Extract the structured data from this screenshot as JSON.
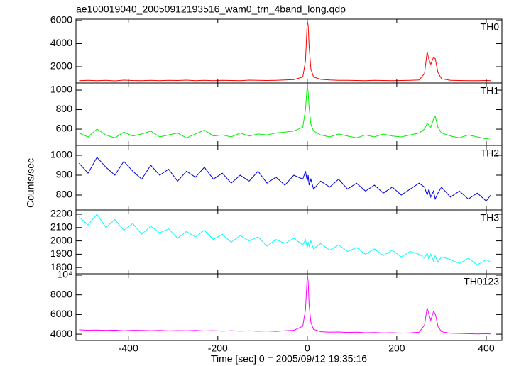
{
  "title": "ae100019040_20050912193516_wam0_trn_4band_long.qdp",
  "x_label": "Time [sec] 0 = 2005/09/12 19:35:16",
  "y_label": "Counts/sec",
  "chart_data": [
    {
      "type": "line",
      "x": [
        -510,
        -490,
        -470,
        -450,
        -430,
        -410,
        -390,
        -370,
        -350,
        -330,
        -310,
        -290,
        -270,
        -250,
        -230,
        -210,
        -190,
        -170,
        -150,
        -130,
        -110,
        -90,
        -70,
        -50,
        -30,
        -10,
        -4,
        0,
        2,
        4,
        8,
        14,
        30,
        50,
        70,
        90,
        110,
        130,
        150,
        170,
        190,
        210,
        230,
        250,
        262,
        268,
        272,
        276,
        282,
        286,
        292,
        300,
        320,
        340,
        360,
        380,
        400,
        410
      ],
      "series": [
        {
          "name": "TH0",
          "color": "#ff0000",
          "values": [
            780,
            820,
            790,
            810,
            770,
            830,
            800,
            790,
            820,
            780,
            810,
            800,
            830,
            790,
            810,
            780,
            820,
            800,
            790,
            830,
            810,
            800,
            820,
            850,
            880,
            1100,
            2500,
            5900,
            5600,
            3800,
            1800,
            1100,
            900,
            850,
            820,
            810,
            800,
            790,
            810,
            800,
            780,
            800,
            820,
            850,
            1400,
            3300,
            2600,
            2200,
            2800,
            2700,
            1500,
            950,
            820,
            800,
            790,
            780,
            800,
            790
          ]
        }
      ],
      "xlim": [
        -517,
        435
      ],
      "xticks": [
        -400,
        -200,
        0,
        200,
        400
      ],
      "ylim": [
        585,
        6120
      ],
      "yticks": [
        2000,
        4000,
        6000
      ]
    },
    {
      "type": "line",
      "x": [
        -510,
        -490,
        -470,
        -450,
        -430,
        -410,
        -390,
        -370,
        -350,
        -330,
        -310,
        -290,
        -270,
        -250,
        -230,
        -210,
        -190,
        -170,
        -150,
        -130,
        -110,
        -90,
        -70,
        -50,
        -30,
        -10,
        -4,
        0,
        2,
        4,
        8,
        14,
        30,
        50,
        70,
        90,
        110,
        130,
        150,
        170,
        190,
        210,
        230,
        250,
        262,
        268,
        272,
        276,
        282,
        286,
        292,
        300,
        320,
        340,
        360,
        380,
        400,
        410
      ],
      "series": [
        {
          "name": "TH1",
          "color": "#00ee00",
          "values": [
            560,
            520,
            600,
            540,
            510,
            570,
            530,
            550,
            580,
            520,
            540,
            560,
            510,
            550,
            590,
            530,
            540,
            520,
            560,
            530,
            550,
            540,
            560,
            570,
            580,
            620,
            800,
            1050,
            980,
            820,
            650,
            580,
            540,
            520,
            550,
            530,
            510,
            540,
            520,
            550,
            530,
            520,
            540,
            560,
            600,
            660,
            640,
            620,
            700,
            730,
            620,
            560,
            530,
            510,
            540,
            520,
            500,
            510
          ]
        }
      ],
      "xlim": [
        -517,
        435
      ],
      "xticks": [
        -400,
        -200,
        0,
        200,
        400
      ],
      "ylim": [
        433,
        1073
      ],
      "yticks": [
        600,
        800,
        1000
      ]
    },
    {
      "type": "line",
      "x": [
        -510,
        -490,
        -470,
        -450,
        -430,
        -410,
        -390,
        -370,
        -350,
        -330,
        -310,
        -290,
        -270,
        -250,
        -230,
        -210,
        -190,
        -170,
        -150,
        -130,
        -110,
        -90,
        -70,
        -50,
        -30,
        -10,
        -4,
        0,
        2,
        4,
        8,
        14,
        30,
        50,
        70,
        90,
        110,
        130,
        150,
        170,
        190,
        210,
        230,
        250,
        262,
        268,
        272,
        276,
        282,
        286,
        292,
        300,
        320,
        340,
        360,
        380,
        400,
        410
      ],
      "series": [
        {
          "name": "TH2",
          "color": "#0000dd",
          "values": [
            960,
            910,
            990,
            940,
            900,
            970,
            920,
            880,
            950,
            900,
            930,
            870,
            920,
            890,
            940,
            880,
            910,
            860,
            900,
            870,
            920,
            860,
            890,
            850,
            900,
            880,
            920,
            870,
            900,
            850,
            880,
            830,
            870,
            840,
            880,
            830,
            860,
            820,
            850,
            810,
            840,
            800,
            830,
            860,
            840,
            800,
            830,
            790,
            820,
            780,
            810,
            840,
            790,
            820,
            780,
            810,
            770,
            800
          ]
        }
      ],
      "xlim": [
        -517,
        435
      ],
      "xticks": [
        -400,
        -200,
        0,
        200,
        400
      ],
      "ylim": [
        725,
        1050
      ],
      "yticks": [
        800,
        900,
        1000
      ]
    },
    {
      "type": "line",
      "x": [
        -510,
        -490,
        -470,
        -450,
        -430,
        -410,
        -390,
        -370,
        -350,
        -330,
        -310,
        -290,
        -270,
        -250,
        -230,
        -210,
        -190,
        -170,
        -150,
        -130,
        -110,
        -90,
        -70,
        -50,
        -30,
        -10,
        -4,
        0,
        2,
        4,
        8,
        14,
        30,
        50,
        70,
        90,
        110,
        130,
        150,
        170,
        190,
        210,
        230,
        250,
        262,
        268,
        272,
        276,
        282,
        286,
        292,
        300,
        320,
        340,
        360,
        380,
        400,
        410
      ],
      "series": [
        {
          "name": "TH3",
          "color": "#00ffff",
          "values": [
            2180,
            2120,
            2200,
            2100,
            2160,
            2080,
            2130,
            2050,
            2110,
            2060,
            2090,
            2020,
            2070,
            2030,
            2080,
            2010,
            2050,
            1990,
            2040,
            2000,
            2030,
            1960,
            2010,
            1980,
            2020,
            1970,
            2010,
            1950,
            1990,
            1960,
            2000,
            1940,
            1980,
            1930,
            1970,
            1920,
            1950,
            1900,
            1940,
            1890,
            1930,
            1880,
            1920,
            1900,
            1870,
            1910,
            1860,
            1900,
            1850,
            1890,
            1840,
            1880,
            1860,
            1830,
            1870,
            1820,
            1860,
            1840
          ]
        }
      ],
      "xlim": [
        -517,
        435
      ],
      "xticks": [
        -400,
        -200,
        0,
        200,
        400
      ],
      "ylim": [
        1753,
        2232
      ],
      "yticks": [
        1800,
        1900,
        2000,
        2100,
        2200
      ]
    },
    {
      "type": "line",
      "x": [
        -510,
        -490,
        -470,
        -450,
        -430,
        -410,
        -390,
        -370,
        -350,
        -330,
        -310,
        -290,
        -270,
        -250,
        -230,
        -210,
        -190,
        -170,
        -150,
        -130,
        -110,
        -90,
        -70,
        -50,
        -30,
        -10,
        -4,
        0,
        2,
        4,
        8,
        14,
        30,
        50,
        70,
        90,
        110,
        130,
        150,
        170,
        190,
        210,
        230,
        250,
        262,
        268,
        272,
        276,
        282,
        286,
        292,
        300,
        320,
        340,
        360,
        380,
        400,
        410
      ],
      "series": [
        {
          "name": "TH0123",
          "color": "#ff00ff",
          "values": [
            4450,
            4400,
            4420,
            4380,
            4410,
            4350,
            4400,
            4380,
            4360,
            4390,
            4340,
            4370,
            4350,
            4380,
            4330,
            4360,
            4320,
            4350,
            4310,
            4340,
            4300,
            4330,
            4290,
            4350,
            4400,
            4800,
            6500,
            9900,
            9400,
            7000,
            5200,
            4500,
            4250,
            4200,
            4220,
            4180,
            4200,
            4150,
            4170,
            4130,
            4150,
            4110,
            4130,
            4200,
            4900,
            6700,
            6000,
            5400,
            6300,
            6100,
            4800,
            4250,
            4100,
            4080,
            4050,
            4030,
            4050,
            4020
          ]
        }
      ],
      "xlim": [
        -517,
        435
      ],
      "xticks": [
        -400,
        -200,
        0,
        200,
        400
      ],
      "ylim": [
        3357,
        10143
      ],
      "yticks": [
        4000,
        6000,
        8000,
        {
          "value": 10000,
          "label": "10⁴"
        }
      ]
    }
  ]
}
